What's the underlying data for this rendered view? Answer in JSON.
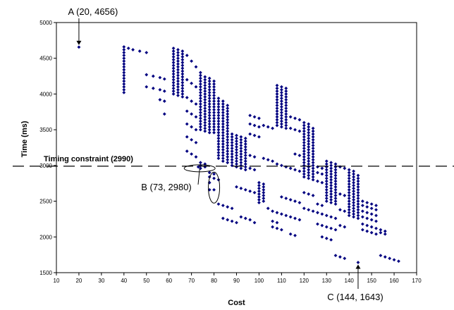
{
  "chart_data": {
    "type": "scatter",
    "xlabel": "Cost",
    "ylabel": "Time (ms)",
    "xlim": [
      10,
      170
    ],
    "ylim": [
      1500,
      5000
    ],
    "x_ticks": [
      10,
      20,
      30,
      40,
      50,
      60,
      70,
      80,
      90,
      100,
      110,
      120,
      130,
      140,
      150,
      160,
      170
    ],
    "y_ticks": [
      1500,
      2000,
      2500,
      3000,
      3500,
      4000,
      4500,
      5000
    ],
    "grid": false,
    "legend": "none",
    "marker_color": "#000080",
    "constraint": {
      "value": 2990,
      "label": "Timing constraint (2990)"
    },
    "annotations": [
      {
        "id": "A",
        "label": "A (20, 4656)",
        "x": 20,
        "y": 4656
      },
      {
        "id": "B",
        "label": "B (73, 2980)",
        "x": 73,
        "y": 2980
      },
      {
        "id": "C",
        "label": "C (144, 1643)",
        "x": 144,
        "y": 1643
      }
    ],
    "columns": [
      {
        "x": 20,
        "y": [
          4656
        ]
      },
      {
        "x": 40,
        "y": [
          4020,
          4060,
          4100,
          4140,
          4180,
          4220,
          4260,
          4300,
          4340,
          4380,
          4420,
          4460,
          4500,
          4540,
          4580,
          4620,
          4660
        ]
      },
      {
        "x": 42,
        "y": [
          4640
        ]
      },
      {
        "x": 44,
        "y": [
          4620
        ]
      },
      {
        "x": 47,
        "y": [
          4600
        ]
      },
      {
        "x": 50,
        "y": [
          4580,
          4270,
          4100
        ]
      },
      {
        "x": 53,
        "y": [
          4250,
          4080
        ]
      },
      {
        "x": 56,
        "y": [
          4230,
          4060,
          3920
        ]
      },
      {
        "x": 58,
        "y": [
          4210,
          4040,
          3900,
          3720
        ]
      },
      {
        "x": 62,
        "y": [
          4000,
          4040,
          4080,
          4120,
          4160,
          4200,
          4240,
          4280,
          4320,
          4360,
          4400,
          4440,
          4480,
          4520,
          4560,
          4600,
          4640
        ]
      },
      {
        "x": 64,
        "y": [
          3980,
          4020,
          4060,
          4100,
          4140,
          4180,
          4220,
          4260,
          4300,
          4340,
          4380,
          4420,
          4460,
          4500,
          4540,
          4580,
          4620
        ]
      },
      {
        "x": 66,
        "y": [
          3960,
          4000,
          4040,
          4080,
          4120,
          4160,
          4200,
          4240,
          4280,
          4320,
          4360,
          4400,
          4440,
          4480,
          4520,
          4560,
          4600
        ]
      },
      {
        "x": 68,
        "y": [
          4540,
          4200,
          3950,
          3760,
          3580,
          3400,
          3200
        ]
      },
      {
        "x": 70,
        "y": [
          4460,
          4150,
          3900,
          3720,
          3540,
          3360,
          3160
        ]
      },
      {
        "x": 72,
        "y": [
          4380,
          4100,
          3860,
          3680,
          3500,
          3320,
          3120
        ]
      },
      {
        "x": 73,
        "y": [
          2980
        ]
      },
      {
        "x": 74,
        "y": [
          3500,
          3540,
          3580,
          3620,
          3660,
          3700,
          3740,
          3780,
          3820,
          3860,
          3900,
          3940,
          3980,
          4020,
          4060,
          4100,
          4140,
          4180,
          4220,
          4260,
          4300,
          3040,
          3000,
          2960
        ]
      },
      {
        "x": 76,
        "y": [
          3480,
          3520,
          3560,
          3600,
          3640,
          3680,
          3720,
          3760,
          3800,
          3840,
          3880,
          3920,
          3960,
          4000,
          4040,
          4080,
          4120,
          4160,
          4200,
          4240,
          3020,
          2980
        ]
      },
      {
        "x": 78,
        "y": [
          3460,
          3500,
          3540,
          3580,
          3620,
          3660,
          3700,
          3740,
          3780,
          3820,
          3860,
          3900,
          3940,
          3980,
          4020,
          4060,
          4100,
          4140,
          4180,
          4220,
          2900,
          2840,
          2760,
          2660
        ]
      },
      {
        "x": 80,
        "y": [
          3460,
          3500,
          3540,
          3580,
          3620,
          3660,
          3700,
          3740,
          3780,
          3820,
          3860,
          3900,
          3940,
          3980,
          4020,
          4060,
          4100,
          4140,
          4180,
          2880,
          2820,
          2660
        ]
      },
      {
        "x": 82,
        "y": [
          3100,
          3140,
          3180,
          3220,
          3260,
          3300,
          3340,
          3380,
          3420,
          3460,
          3500,
          3540,
          3580,
          3620,
          3660,
          3700,
          3740,
          3780,
          3820,
          3860,
          3900,
          3940,
          2800,
          2460
        ]
      },
      {
        "x": 84,
        "y": [
          3060,
          3100,
          3140,
          3180,
          3220,
          3260,
          3300,
          3340,
          3380,
          3420,
          3460,
          3500,
          3540,
          3580,
          3620,
          3660,
          3700,
          3740,
          3780,
          3820,
          3860,
          3900,
          2440,
          2260
        ]
      },
      {
        "x": 86,
        "y": [
          3040,
          3080,
          3120,
          3160,
          3200,
          3240,
          3280,
          3320,
          3360,
          3400,
          3440,
          3480,
          3520,
          3560,
          3600,
          3640,
          3680,
          3720,
          3760,
          3800,
          3840,
          2420,
          2240
        ]
      },
      {
        "x": 88,
        "y": [
          3000,
          3040,
          3080,
          3120,
          3160,
          3200,
          3240,
          3280,
          3320,
          3360,
          3400,
          3440,
          2400,
          2220
        ]
      },
      {
        "x": 90,
        "y": [
          2980,
          3020,
          3060,
          3100,
          3140,
          3180,
          3220,
          3260,
          3300,
          3340,
          3380,
          3420,
          2200,
          2700
        ]
      },
      {
        "x": 92,
        "y": [
          2960,
          3000,
          3040,
          3080,
          3120,
          3160,
          3200,
          3240,
          3280,
          3320,
          3360,
          3400,
          2680,
          2280
        ]
      },
      {
        "x": 94,
        "y": [
          2940,
          2980,
          3020,
          3060,
          3100,
          3140,
          3180,
          3220,
          3260,
          3300,
          3340,
          3380,
          2660,
          2260
        ]
      },
      {
        "x": 96,
        "y": [
          3700,
          3580,
          3440,
          3140,
          2960,
          2640,
          2240
        ]
      },
      {
        "x": 98,
        "y": [
          3680,
          3560,
          3420,
          3120,
          2940,
          2620,
          2200
        ]
      },
      {
        "x": 100,
        "y": [
          3660,
          3540,
          3400,
          2760,
          2720,
          2680,
          2640,
          2600,
          2560,
          2520,
          2480
        ]
      },
      {
        "x": 102,
        "y": [
          2740,
          2700,
          2660,
          2620,
          2580,
          2540,
          2500,
          3560,
          3100
        ]
      },
      {
        "x": 104,
        "y": [
          3540,
          3080,
          2400
        ]
      },
      {
        "x": 106,
        "y": [
          3520,
          3060,
          2360,
          2220,
          2140
        ]
      },
      {
        "x": 108,
        "y": [
          3560,
          3600,
          3640,
          3680,
          3720,
          3760,
          3800,
          3840,
          3880,
          3920,
          3960,
          4000,
          4040,
          4080,
          4120,
          3020,
          2340,
          2200,
          2120
        ]
      },
      {
        "x": 110,
        "y": [
          3540,
          3580,
          3620,
          3660,
          3700,
          3740,
          3780,
          3820,
          3860,
          3900,
          3940,
          3980,
          4020,
          4060,
          4100,
          3000,
          2560,
          2320,
          2100
        ]
      },
      {
        "x": 112,
        "y": [
          3520,
          3560,
          3600,
          3640,
          3680,
          3720,
          3760,
          3800,
          3840,
          3880,
          3920,
          3960,
          4000,
          4040,
          4080,
          2980,
          2540,
          2300
        ]
      },
      {
        "x": 114,
        "y": [
          3680,
          3520,
          2960,
          2520,
          2280,
          2040
        ]
      },
      {
        "x": 116,
        "y": [
          3660,
          3500,
          3160,
          2940,
          2500,
          2260,
          2020
        ]
      },
      {
        "x": 118,
        "y": [
          3640,
          3480,
          3140,
          2920,
          2480,
          2240
        ]
      },
      {
        "x": 120,
        "y": [
          2840,
          2880,
          2920,
          2960,
          3000,
          3040,
          3080,
          3120,
          3160,
          3200,
          3240,
          3280,
          3320,
          3360,
          3400,
          3440,
          3480,
          3520,
          3560,
          3600,
          2620,
          2400
        ]
      },
      {
        "x": 122,
        "y": [
          2820,
          2860,
          2900,
          2940,
          2980,
          3020,
          3060,
          3100,
          3140,
          3180,
          3220,
          3260,
          3300,
          3340,
          3380,
          3420,
          3460,
          3500,
          3540,
          3580,
          2600,
          2380
        ]
      },
      {
        "x": 124,
        "y": [
          2800,
          2840,
          2880,
          2920,
          2960,
          3000,
          3040,
          3080,
          3120,
          3160,
          3200,
          3240,
          3280,
          3320,
          3360,
          3400,
          3440,
          3480,
          3520,
          2580,
          2360
        ]
      },
      {
        "x": 126,
        "y": [
          2980,
          2900,
          2780,
          2460,
          2340,
          2180
        ]
      },
      {
        "x": 128,
        "y": [
          2960,
          2880,
          2760,
          2440,
          2320,
          2160,
          2000
        ]
      },
      {
        "x": 130,
        "y": [
          2500,
          2540,
          2580,
          2620,
          2660,
          2700,
          2740,
          2780,
          2820,
          2860,
          2900,
          2940,
          2980,
          3020,
          3060,
          2300,
          2140,
          1980
        ]
      },
      {
        "x": 132,
        "y": [
          2480,
          2520,
          2560,
          2600,
          2640,
          2680,
          2720,
          2760,
          2800,
          2840,
          2880,
          2920,
          2960,
          3000,
          3040,
          2280,
          2120,
          1960
        ]
      },
      {
        "x": 134,
        "y": [
          2460,
          2500,
          2540,
          2580,
          2620,
          2660,
          2700,
          2740,
          2780,
          2820,
          2860,
          2900,
          2940,
          2980,
          3020,
          2260,
          2100,
          1740
        ]
      },
      {
        "x": 136,
        "y": [
          2980,
          2600,
          2380,
          2160,
          1720
        ]
      },
      {
        "x": 138,
        "y": [
          2960,
          2580,
          2360,
          2140,
          1700
        ]
      },
      {
        "x": 140,
        "y": [
          2300,
          2340,
          2380,
          2420,
          2460,
          2500,
          2540,
          2580,
          2620,
          2660,
          2700,
          2740,
          2780,
          2820,
          2860,
          2900,
          2940
        ]
      },
      {
        "x": 142,
        "y": [
          2280,
          2320,
          2360,
          2400,
          2440,
          2480,
          2520,
          2560,
          2600,
          2640,
          2680,
          2720,
          2760,
          2800,
          2840,
          2880,
          2920
        ]
      },
      {
        "x": 144,
        "y": [
          1643,
          2260,
          2300,
          2340,
          2380,
          2420,
          2460,
          2500,
          2540,
          2580,
          2620,
          2660,
          2700,
          2740,
          2780,
          2820,
          2860
        ]
      },
      {
        "x": 146,
        "y": [
          2500,
          2440,
          2360,
          2280,
          2180,
          2100
        ]
      },
      {
        "x": 148,
        "y": [
          2480,
          2420,
          2340,
          2260,
          2160,
          2080
        ]
      },
      {
        "x": 150,
        "y": [
          2460,
          2400,
          2320,
          2240,
          2140,
          2060
        ]
      },
      {
        "x": 152,
        "y": [
          2440,
          2380,
          2300,
          2220,
          2120,
          2040
        ]
      },
      {
        "x": 154,
        "y": [
          2100,
          2060,
          1740
        ]
      },
      {
        "x": 156,
        "y": [
          2080,
          2040,
          1720
        ]
      },
      {
        "x": 158,
        "y": [
          1700
        ]
      },
      {
        "x": 160,
        "y": [
          1680
        ]
      },
      {
        "x": 162,
        "y": [
          1660
        ]
      }
    ]
  }
}
